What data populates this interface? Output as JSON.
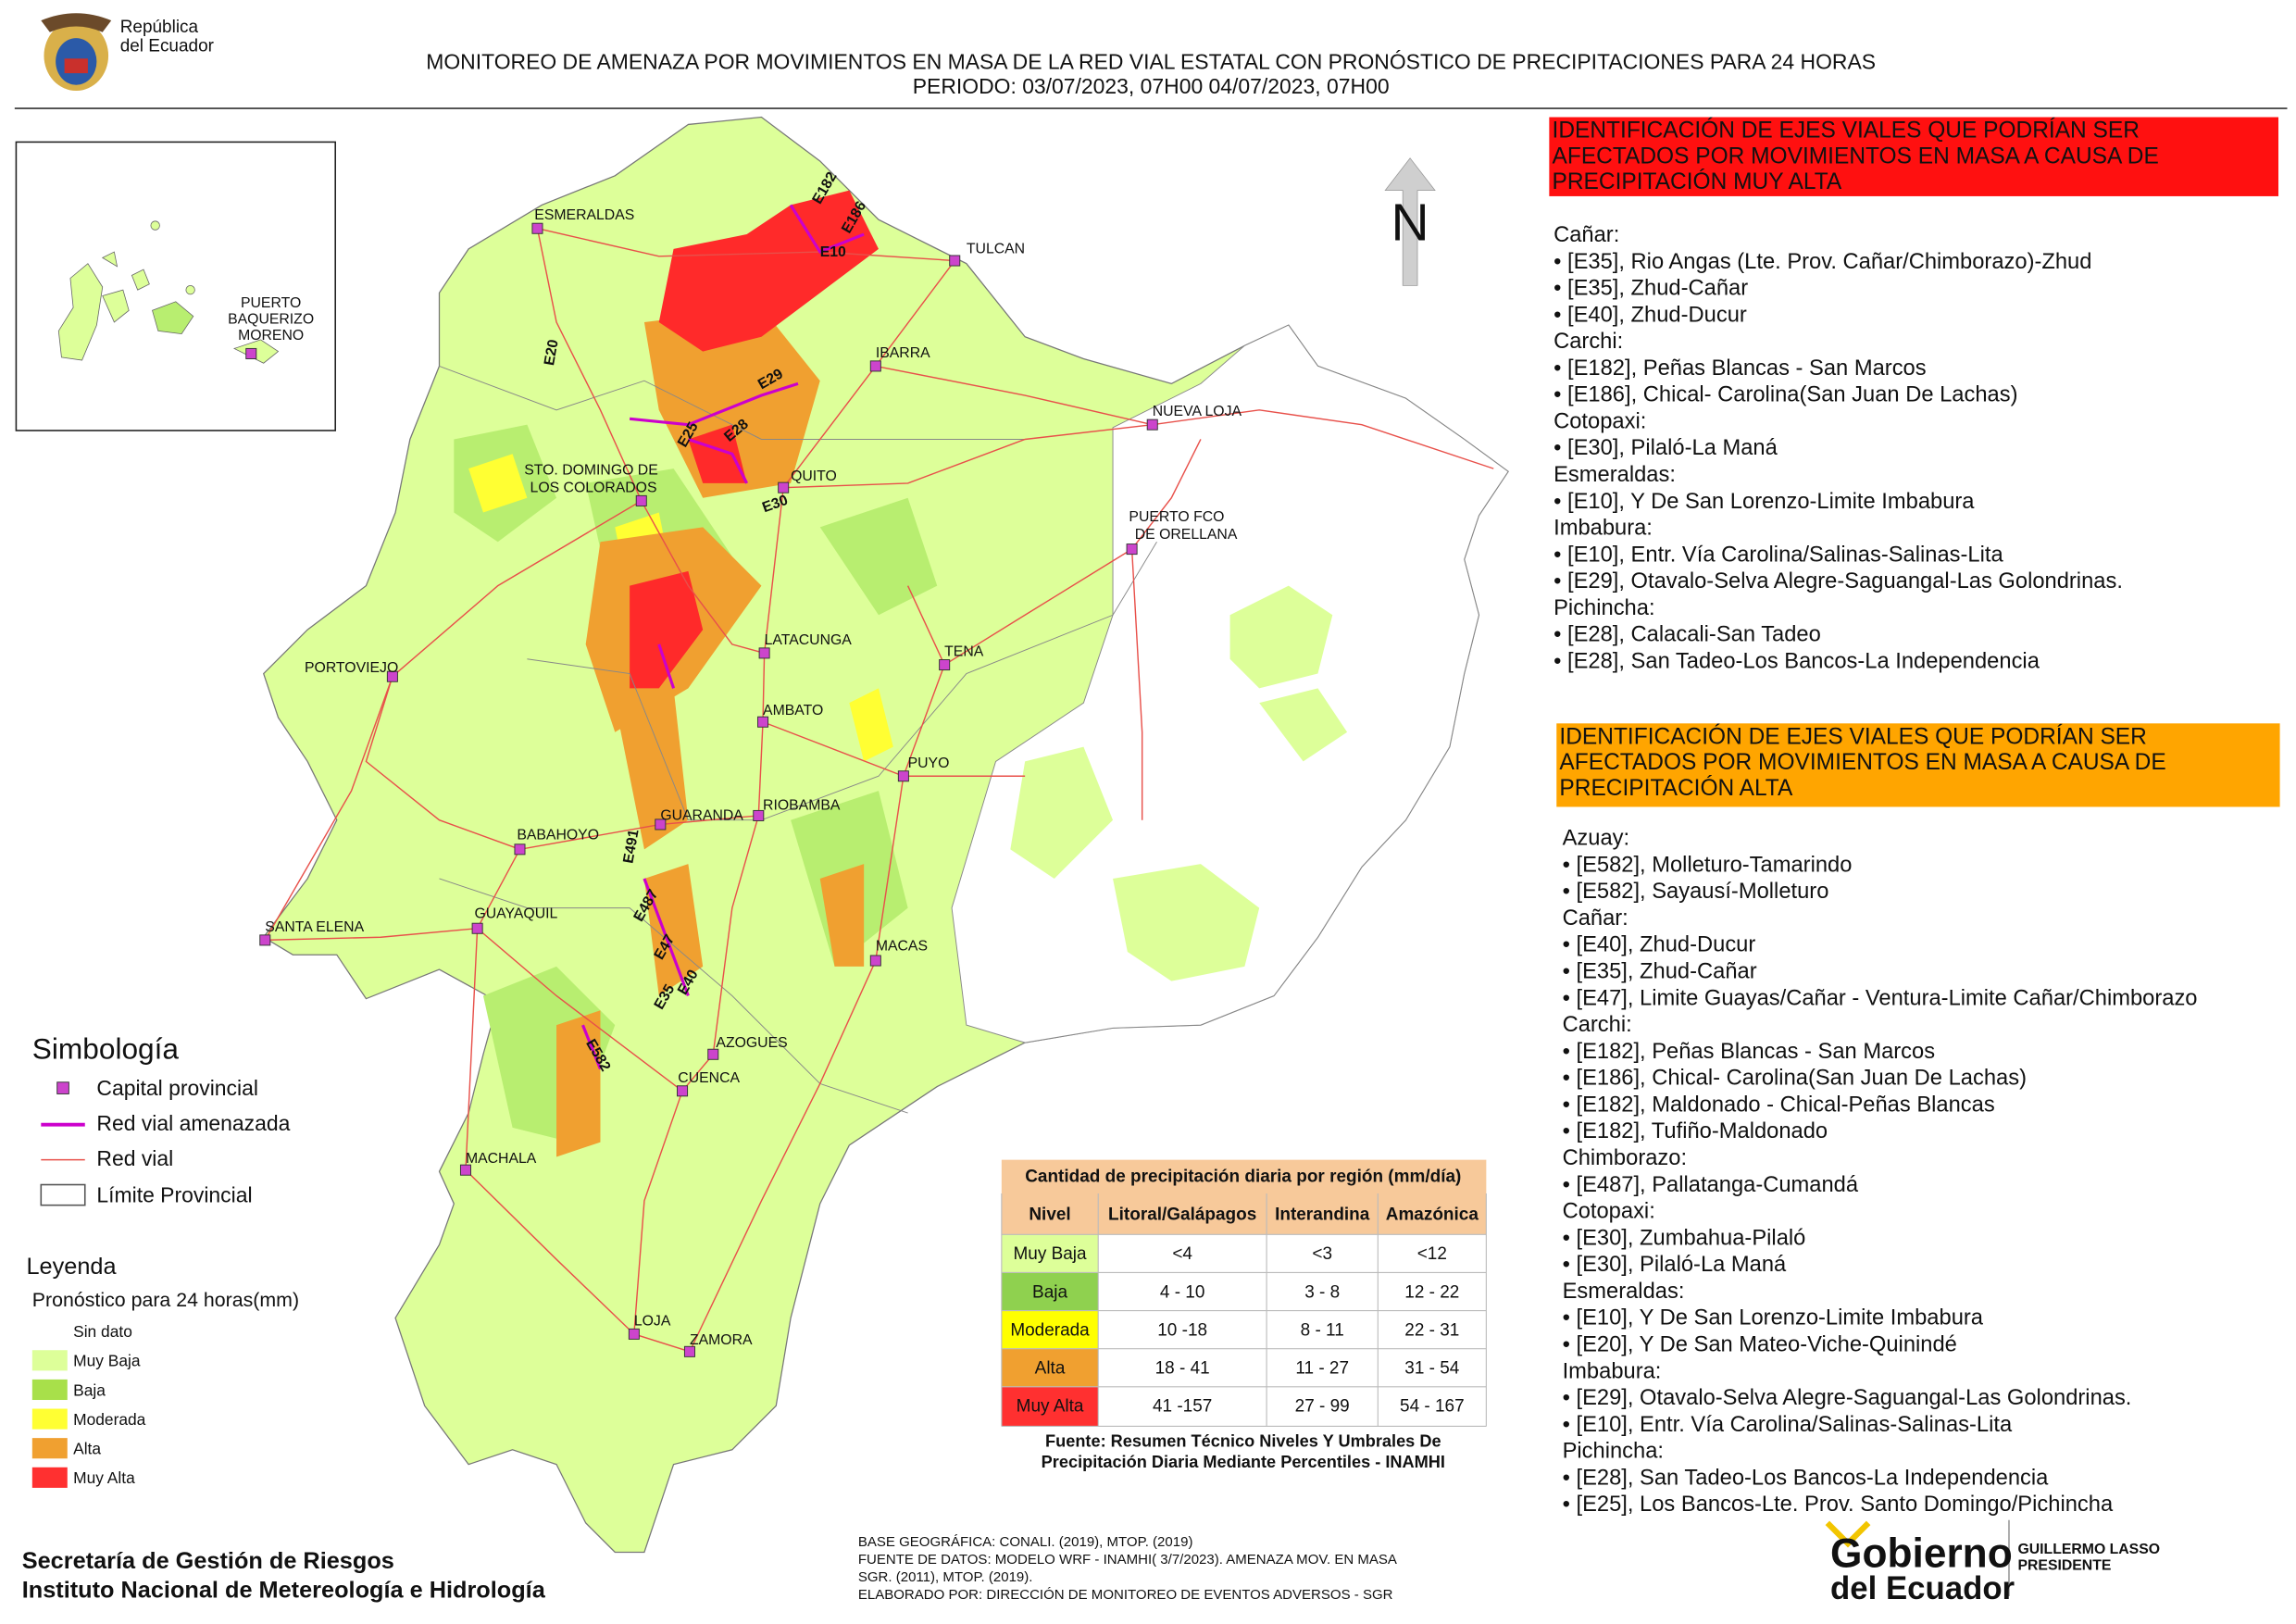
{
  "header": {
    "logo_text": [
      "República",
      "del Ecuador"
    ],
    "title": "MONITOREO DE AMENAZA POR MOVIMIENTOS EN MASA DE LA RED VIAL  ESTATAL  CON PRONÓSTICO  DE  PRECIPITACIONES PARA 24 HORAS",
    "period": "PERIODO: 03/07/2023, 07H00 04/07/2023, 07H00"
  },
  "inset": {
    "label": [
      "PUERTO",
      "BAQUERIZO",
      "MORENO"
    ]
  },
  "north": "N",
  "cities": [
    {
      "label": "ESMERALDAS"
    },
    {
      "label": "TULCAN"
    },
    {
      "label": "IBARRA"
    },
    {
      "label": "NUEVA LOJA"
    },
    {
      "label": [
        "STO. DOMINGO DE",
        "LOS COLORADOS"
      ]
    },
    {
      "label": "QUITO"
    },
    {
      "label": [
        "PUERTO FCO",
        "DE ORELLANA"
      ]
    },
    {
      "label": "LATACUNGA"
    },
    {
      "label": "TENA"
    },
    {
      "label": "PORTOVIEJO"
    },
    {
      "label": "AMBATO"
    },
    {
      "label": "PUYO"
    },
    {
      "label": "GUARANDA"
    },
    {
      "label": "RIOBAMBA"
    },
    {
      "label": "BABAHOYO"
    },
    {
      "label": "SANTA ELENA"
    },
    {
      "label": "GUAYAQUIL"
    },
    {
      "label": "MACAS"
    },
    {
      "label": "AZOGUES"
    },
    {
      "label": "CUENCA"
    },
    {
      "label": "MACHALA"
    },
    {
      "label": "LOJA"
    },
    {
      "label": "ZAMORA"
    }
  ],
  "road_labels": [
    "E182",
    "E186",
    "E10",
    "E20",
    "E29",
    "E28",
    "E25",
    "E30",
    "E491",
    "E487",
    "E47",
    "E35",
    "E40",
    "E582"
  ],
  "simbologia": {
    "title": "Simbología",
    "items": [
      "Capital provincial",
      "Red vial amenazada",
      "Red vial",
      "Límite Provincial"
    ]
  },
  "leyenda": {
    "title": "Leyenda",
    "subtitle": "Pronóstico para 24 horas(mm)",
    "items": [
      "Sin dato",
      "Muy Baja",
      "Baja",
      "Moderada",
      "Alta",
      "Muy Alta"
    ]
  },
  "table": {
    "title": "Cantidad de precipitación diaria por región (mm/día)",
    "header": [
      "Nivel",
      "Litoral/Galápagos",
      "Interandina",
      "Amazónica"
    ],
    "rows": [
      [
        "Muy Baja",
        "<4",
        "<3",
        "<12"
      ],
      [
        "Baja",
        "4 - 10",
        "3 - 8",
        "12 - 22"
      ],
      [
        "Moderada",
        "10 -18",
        "8 - 11",
        "22 - 31"
      ],
      [
        "Alta",
        "18 - 41",
        "11 - 27",
        "31 - 54"
      ],
      [
        "Muy Alta",
        "41 -157",
        "27 - 99",
        "54 - 167"
      ]
    ],
    "source": [
      "Fuente: Resumen Técnico Niveles Y Umbrales De",
      "Precipitación Diaria Mediante Percentiles - INAMHI"
    ]
  },
  "panels": [
    {
      "heading": [
        "IDENTIFICACIÓN DE EJES VIALES QUE PODRÍAN SER",
        "AFECTADOS POR MOVIMIENTOS EN MASA A CAUSA DE",
        "PRECIPITACIÓN MUY ALTA"
      ],
      "groups": [
        {
          "province": "Cañar:",
          "roads": [
            "• [E35], Rio Angas (Lte. Prov. Cañar/Chimborazo)-Zhud",
            "• [E35], Zhud-Cañar",
            "• [E40], Zhud-Ducur"
          ]
        },
        {
          "province": "Carchi:",
          "roads": [
            "• [E182], Peñas Blancas - San Marcos",
            "• [E186], Chical- Carolina(San Juan De Lachas)"
          ]
        },
        {
          "province": "Cotopaxi:",
          "roads": [
            "• [E30], Pilaló-La Maná"
          ]
        },
        {
          "province": "Esmeraldas:",
          "roads": [
            "• [E10], Y De San Lorenzo-Limite Imbabura"
          ]
        },
        {
          "province": "Imbabura:",
          "roads": [
            "• [E10], Entr. Vía Carolina/Salinas-Salinas-Lita",
            "• [E29], Otavalo-Selva Alegre-Saguangal-Las Golondrinas."
          ]
        },
        {
          "province": "Pichincha:",
          "roads": [
            "• [E28], Calacali-San Tadeo",
            "• [E28], San Tadeo-Los Bancos-La Independencia"
          ]
        }
      ]
    },
    {
      "heading": [
        "IDENTIFICACIÓN DE EJES VIALES QUE PODRÍAN SER",
        "AFECTADOS POR MOVIMIENTOS EN MASA A CAUSA DE",
        "PRECIPITACIÓN  ALTA"
      ],
      "groups": [
        {
          "province": "Azuay:",
          "roads": [
            "• [E582], Molleturo-Tamarindo",
            "• [E582], Sayausí-Molleturo"
          ]
        },
        {
          "province": "Cañar:",
          "roads": [
            "• [E40], Zhud-Ducur",
            "• [E35], Zhud-Cañar",
            "• [E47], Limite Guayas/Cañar - Ventura-Limite Cañar/Chimborazo"
          ]
        },
        {
          "province": "Carchi:",
          "roads": [
            "• [E182], Peñas Blancas - San Marcos",
            "• [E186], Chical- Carolina(San Juan De Lachas)",
            "• [E182], Maldonado - Chical-Peñas Blancas",
            "• [E182], Tufiño-Maldonado"
          ]
        },
        {
          "province": "Chimborazo:",
          "roads": [
            "• [E487], Pallatanga-Cumandá"
          ]
        },
        {
          "province": "Cotopaxi:",
          "roads": [
            "• [E30], Zumbahua-Pilaló",
            "• [E30], Pilaló-La Maná"
          ]
        },
        {
          "province": "Esmeraldas:",
          "roads": [
            "• [E10], Y De San Lorenzo-Limite Imbabura",
            "• [E20], Y De San Mateo-Viche-Quinindé"
          ]
        },
        {
          "province": "Imbabura:",
          "roads": [
            "• [E29], Otavalo-Selva Alegre-Saguangal-Las Golondrinas.",
            "• [E10], Entr. Vía Carolina/Salinas-Salinas-Lita"
          ]
        },
        {
          "province": "Pichincha:",
          "roads": [
            "• [E28], San Tadeo-Los Bancos-La Independencia",
            "• [E25], Los Bancos-Lte. Prov. Santo Domingo/Pichincha"
          ]
        }
      ]
    }
  ],
  "footer": {
    "org": [
      "Secretaría de Gestión de Riesgos",
      "Instituto Nacional de Metereología e Hidrología"
    ],
    "credits": [
      "BASE GEOGRÁFICA: CONALI. (2019), MTOP. (2019)",
      "FUENTE DE DATOS: MODELO WRF - INAMHI( 3/7/2023).  AMENAZA MOV. EN MASA",
      "SGR. (2011), MTOP. (2019).",
      "ELABORADO POR: DIRECCIÓN DE MONITOREO DE EVENTOS ADVERSOS - SGR"
    ],
    "gov": [
      "Gobierno",
      "del Ecuador"
    ],
    "president": [
      "GUILLERMO LASSO",
      "PRESIDENTE"
    ]
  }
}
